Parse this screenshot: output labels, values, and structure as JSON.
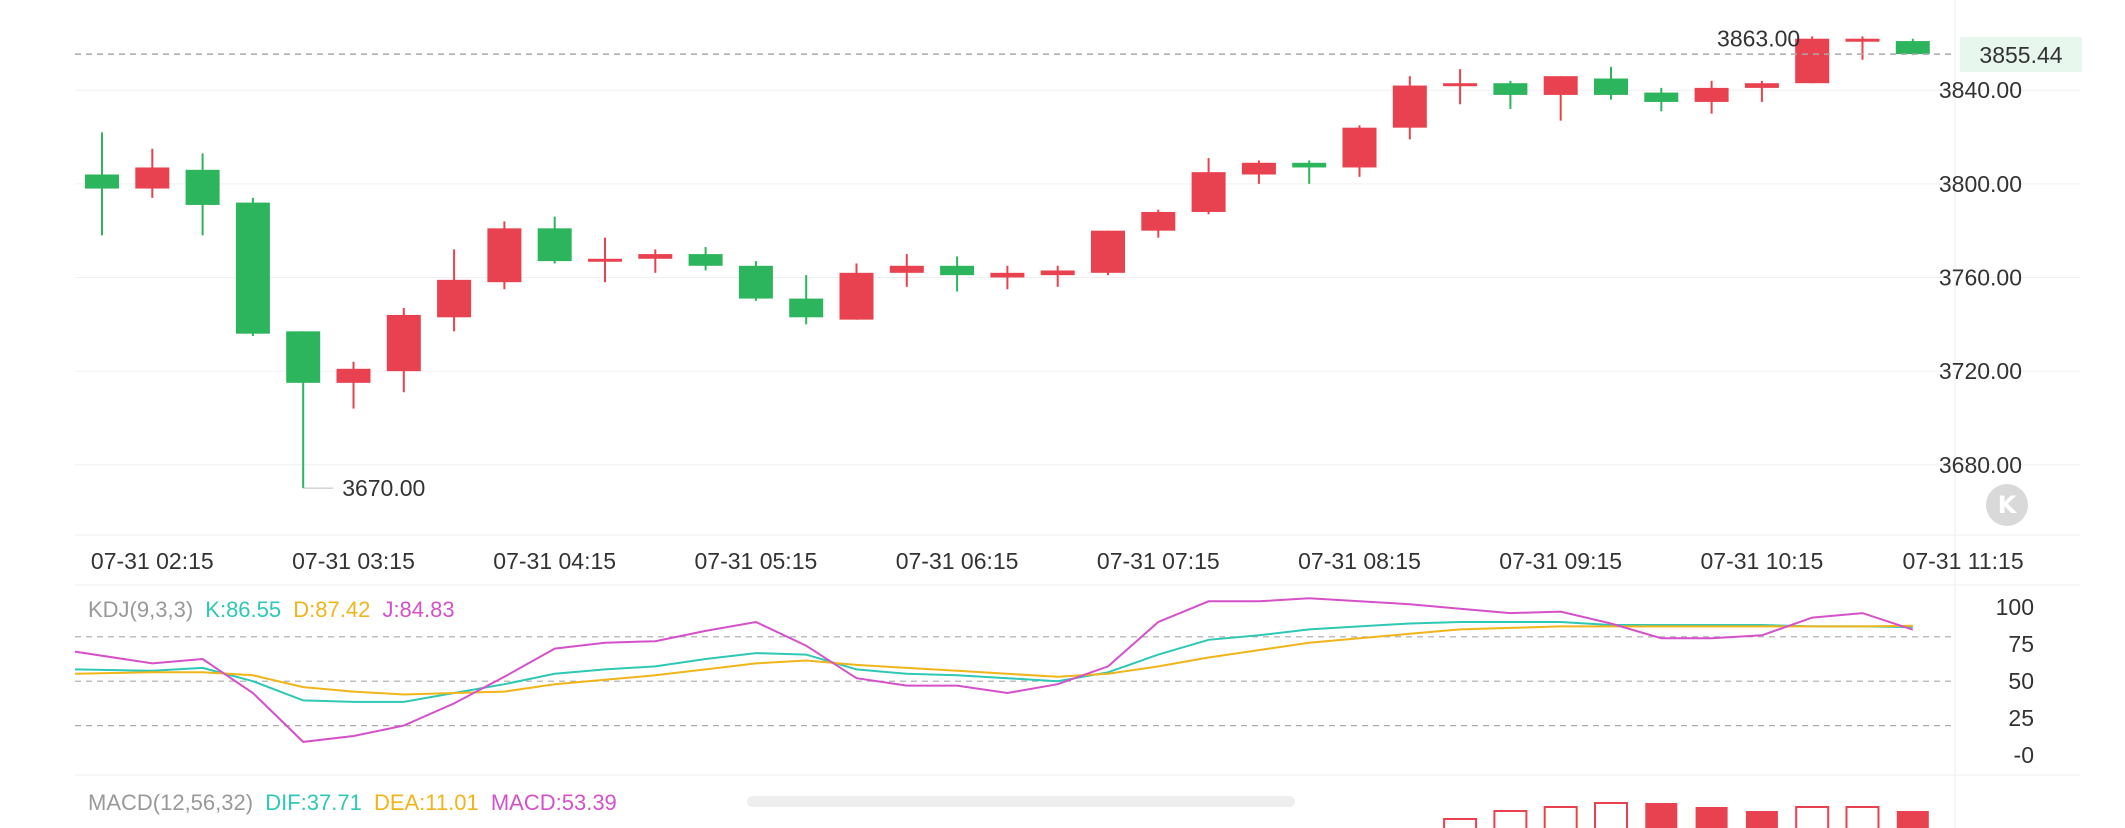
{
  "colors": {
    "up": "#e8414f",
    "down": "#2db55d",
    "grid": "#f0f0f0",
    "dash": "#aaaaaa",
    "axis_text": "#333333",
    "legend_label": "#999999",
    "k": "#2ec8b4",
    "d": "#f0b51b",
    "j": "#d551c9",
    "dif": "#2ec8b4",
    "dea": "#f0b51b",
    "macd": "#d551c9",
    "last_price_bg": "#e8f7ee",
    "last_price_text": "#2db55d"
  },
  "chart_data": [
    {
      "type": "candlestick",
      "interval_minutes": 15,
      "ylim": [
        3650,
        3870
      ],
      "y_ticks": [
        "3680.00",
        "3720.00",
        "3760.00",
        "3800.00",
        "3840.00"
      ],
      "x_ticks": [
        "07-31 02:15",
        "07-31 03:15",
        "07-31 04:15",
        "07-31 05:15",
        "07-31 06:15",
        "07-31 07:15",
        "07-31 08:15",
        "07-31 09:15",
        "07-31 10:15",
        "07-31 11:15"
      ],
      "high_label": "3863.00",
      "low_label": "3670.00",
      "last_price_label": "3855.44",
      "last_price": 3855.44,
      "candles": [
        {
          "time": "07-31 02:00",
          "open": 3804,
          "high": 3822,
          "low": 3778,
          "close": 3798
        },
        {
          "time": "07-31 02:15",
          "open": 3798,
          "high": 3815,
          "low": 3794,
          "close": 3807
        },
        {
          "time": "07-31 02:30",
          "open": 3806,
          "high": 3813,
          "low": 3778,
          "close": 3791
        },
        {
          "time": "07-31 02:45",
          "open": 3792,
          "high": 3794,
          "low": 3735,
          "close": 3736
        },
        {
          "time": "07-31 03:00",
          "open": 3737,
          "high": 3737,
          "low": 3670,
          "close": 3715
        },
        {
          "time": "07-31 03:15",
          "open": 3715,
          "high": 3724,
          "low": 3704,
          "close": 3721
        },
        {
          "time": "07-31 03:30",
          "open": 3720,
          "high": 3747,
          "low": 3711,
          "close": 3744
        },
        {
          "time": "07-31 03:45",
          "open": 3743,
          "high": 3772,
          "low": 3737,
          "close": 3759
        },
        {
          "time": "07-31 04:00",
          "open": 3758,
          "high": 3784,
          "low": 3755,
          "close": 3781
        },
        {
          "time": "07-31 04:15",
          "open": 3781,
          "high": 3786,
          "low": 3766,
          "close": 3767
        },
        {
          "time": "07-31 04:30",
          "open": 3767,
          "high": 3777,
          "low": 3758,
          "close": 3768
        },
        {
          "time": "07-31 04:45",
          "open": 3768,
          "high": 3772,
          "low": 3762,
          "close": 3770
        },
        {
          "time": "07-31 05:00",
          "open": 3770,
          "high": 3773,
          "low": 3763,
          "close": 3765
        },
        {
          "time": "07-31 05:15",
          "open": 3765,
          "high": 3767,
          "low": 3750,
          "close": 3751
        },
        {
          "time": "07-31 05:30",
          "open": 3751,
          "high": 3761,
          "low": 3740,
          "close": 3743
        },
        {
          "time": "07-31 05:45",
          "open": 3742,
          "high": 3766,
          "low": 3742,
          "close": 3762
        },
        {
          "time": "07-31 06:00",
          "open": 3762,
          "high": 3770,
          "low": 3756,
          "close": 3765
        },
        {
          "time": "07-31 06:15",
          "open": 3765,
          "high": 3769,
          "low": 3754,
          "close": 3761
        },
        {
          "time": "07-31 06:30",
          "open": 3760,
          "high": 3765,
          "low": 3755,
          "close": 3762
        },
        {
          "time": "07-31 06:45",
          "open": 3761,
          "high": 3765,
          "low": 3756,
          "close": 3763
        },
        {
          "time": "07-31 07:00",
          "open": 3762,
          "high": 3780,
          "low": 3761,
          "close": 3780
        },
        {
          "time": "07-31 07:15",
          "open": 3780,
          "high": 3789,
          "low": 3777,
          "close": 3788
        },
        {
          "time": "07-31 07:30",
          "open": 3788,
          "high": 3811,
          "low": 3787,
          "close": 3805
        },
        {
          "time": "07-31 07:45",
          "open": 3804,
          "high": 3810,
          "low": 3800,
          "close": 3809
        },
        {
          "time": "07-31 08:00",
          "open": 3809,
          "high": 3810,
          "low": 3800,
          "close": 3807
        },
        {
          "time": "07-31 08:15",
          "open": 3807,
          "high": 3825,
          "low": 3803,
          "close": 3824
        },
        {
          "time": "07-31 08:30",
          "open": 3824,
          "high": 3846,
          "low": 3819,
          "close": 3842
        },
        {
          "time": "07-31 08:45",
          "open": 3842,
          "high": 3849,
          "low": 3834,
          "close": 3843
        },
        {
          "time": "07-31 09:00",
          "open": 3843,
          "high": 3844,
          "low": 3832,
          "close": 3838
        },
        {
          "time": "07-31 09:15",
          "open": 3838,
          "high": 3846,
          "low": 3827,
          "close": 3846
        },
        {
          "time": "07-31 09:30",
          "open": 3845,
          "high": 3850,
          "low": 3836,
          "close": 3838
        },
        {
          "time": "07-31 09:45",
          "open": 3839,
          "high": 3841,
          "low": 3831,
          "close": 3835
        },
        {
          "time": "07-31 10:00",
          "open": 3835,
          "high": 3844,
          "low": 3830,
          "close": 3841
        },
        {
          "time": "07-31 10:15",
          "open": 3841,
          "high": 3844,
          "low": 3835,
          "close": 3843
        },
        {
          "time": "07-31 10:30",
          "open": 3843,
          "high": 3863,
          "low": 3843,
          "close": 3862
        },
        {
          "time": "07-31 10:45",
          "open": 3861,
          "high": 3863,
          "low": 3853,
          "close": 3862
        },
        {
          "time": "07-31 11:00",
          "open": 3861,
          "high": 3862,
          "low": 3855,
          "close": 3855.44
        }
      ]
    },
    {
      "type": "line",
      "indicator": "KDJ",
      "legend": {
        "name": "KDJ(9,3,3)",
        "k": "K:86.55",
        "d": "D:87.42",
        "j": "J:84.83"
      },
      "ylim": [
        -10,
        115
      ],
      "y_ticks": [
        "100",
        "75",
        "50",
        "25",
        "-0"
      ],
      "reference_lines": [
        80,
        50,
        20
      ],
      "series": [
        {
          "name": "K",
          "values": [
            58,
            57,
            59,
            50,
            37,
            36,
            36,
            42,
            48,
            55,
            58,
            60,
            65,
            69,
            68,
            58,
            55,
            54,
            52,
            50,
            56,
            68,
            78,
            81,
            85,
            87,
            89,
            90,
            90,
            90,
            88,
            88,
            88,
            88,
            87,
            87,
            86.55
          ]
        },
        {
          "name": "D",
          "values": [
            55,
            56,
            56,
            54,
            46,
            43,
            41,
            42,
            43,
            48,
            51,
            54,
            58,
            62,
            64,
            61,
            59,
            57,
            55,
            53,
            55,
            60,
            66,
            71,
            76,
            79,
            82,
            85,
            86,
            87,
            87,
            87,
            87,
            87,
            87,
            87,
            87.42
          ]
        },
        {
          "name": "J",
          "values": [
            70,
            62,
            65,
            42,
            9,
            13,
            20,
            35,
            53,
            72,
            76,
            77,
            84,
            90,
            74,
            52,
            47,
            47,
            42,
            48,
            60,
            90,
            104,
            104,
            106,
            104,
            102,
            99,
            96,
            97,
            89,
            79,
            79,
            81,
            93,
            96,
            84.83
          ]
        }
      ]
    },
    {
      "type": "bar",
      "indicator": "MACD",
      "legend": {
        "name": "MACD(12,56,32)",
        "dif": "DIF:37.71",
        "dea": "DEA:11.01",
        "macd": "MACD:53.39"
      },
      "visible_histogram": [
        {
          "value": 1,
          "filled": false
        },
        {
          "value": 3,
          "filled": false
        },
        {
          "value": 4,
          "filled": false
        },
        {
          "value": 5,
          "filled": false
        },
        {
          "value": 5,
          "filled": true
        },
        {
          "value": 4,
          "filled": true
        },
        {
          "value": 3,
          "filled": true
        },
        {
          "value": 4,
          "filled": false
        },
        {
          "value": 4,
          "filled": false
        },
        {
          "value": 3,
          "filled": true
        }
      ]
    }
  ],
  "controls": {
    "reset_icon": "K"
  }
}
